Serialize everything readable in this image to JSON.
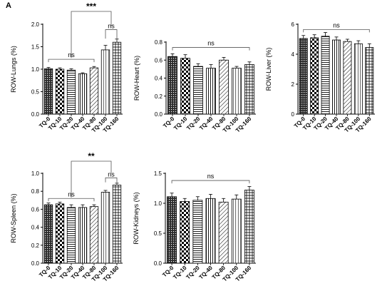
{
  "panel_label": "A",
  "chart_data": [
    {
      "type": "bar",
      "ylabel": "ROW-Lungs (%)",
      "ylim": [
        0,
        2.0
      ],
      "yticks": [
        "0.0",
        "0.5",
        "1.0",
        "1.5",
        "2.0"
      ],
      "categories": [
        "TQ-0",
        "TQ-10",
        "TQ-20",
        "TQ-40",
        "TQ-80",
        "TQ-100",
        "TQ-160"
      ],
      "values": [
        1.01,
        1.0,
        0.98,
        0.9,
        1.03,
        1.43,
        1.6
      ],
      "errors": [
        0.03,
        0.03,
        0.03,
        0.02,
        0.03,
        0.1,
        0.07
      ],
      "annotations": [
        {
          "text": "ns",
          "from": "TQ-0",
          "to": "TQ-80"
        },
        {
          "text": "ns",
          "from": "TQ-100",
          "to": "TQ-160"
        },
        {
          "text": "***",
          "from": "TQ-0 to TQ-80",
          "to": "TQ-100 to TQ-160"
        }
      ]
    },
    {
      "type": "bar",
      "ylabel": "ROW-Heart (%)",
      "ylim": [
        0,
        0.8
      ],
      "yticks": [
        "0.0",
        "0.2",
        "0.4",
        "0.6",
        "0.8"
      ],
      "categories": [
        "TQ-0",
        "TQ-10",
        "TQ-20",
        "TQ-40",
        "TQ-80",
        "TQ-100",
        "TQ-160"
      ],
      "values": [
        0.64,
        0.62,
        0.53,
        0.51,
        0.6,
        0.51,
        0.55
      ],
      "errors": [
        0.03,
        0.04,
        0.03,
        0.04,
        0.03,
        0.02,
        0.03
      ],
      "annotations": [
        {
          "text": "ns",
          "from": "TQ-0",
          "to": "TQ-160"
        }
      ]
    },
    {
      "type": "bar",
      "ylabel": "ROW-Liver (%)",
      "ylim": [
        0,
        6
      ],
      "yticks": [
        "0",
        "2",
        "4",
        "6"
      ],
      "categories": [
        "TQ-0",
        "TQ-10",
        "TQ-20",
        "TQ-40",
        "TQ-80",
        "TQ-100",
        "TQ-160"
      ],
      "values": [
        5.05,
        5.1,
        5.2,
        4.95,
        4.85,
        4.7,
        4.45
      ],
      "errors": [
        0.2,
        0.2,
        0.25,
        0.2,
        0.15,
        0.2,
        0.25
      ],
      "annotations": [
        {
          "text": "ns",
          "from": "TQ-0",
          "to": "TQ-160"
        }
      ]
    },
    {
      "type": "bar",
      "ylabel": "ROW-Spleen (%)",
      "ylim": [
        0,
        1.0
      ],
      "yticks": [
        "0.0",
        "0.2",
        "0.4",
        "0.6",
        "0.8",
        "1.0"
      ],
      "categories": [
        "TQ-0",
        "TQ-10",
        "TQ-20",
        "TQ-40",
        "TQ-80",
        "TQ-100",
        "TQ-160"
      ],
      "values": [
        0.65,
        0.66,
        0.62,
        0.62,
        0.63,
        0.79,
        0.87
      ],
      "errors": [
        0.02,
        0.02,
        0.03,
        0.03,
        0.02,
        0.02,
        0.02
      ],
      "annotations": [
        {
          "text": "ns",
          "from": "TQ-0",
          "to": "TQ-80"
        },
        {
          "text": "ns",
          "from": "TQ-100",
          "to": "TQ-160"
        },
        {
          "text": "**",
          "from": "TQ-0 to TQ-80",
          "to": "TQ-100 to TQ-160"
        }
      ]
    },
    {
      "type": "bar",
      "ylabel": "ROW-Kidneys (%)",
      "ylim": [
        0,
        1.5
      ],
      "yticks": [
        "0.0",
        "0.5",
        "1.0",
        "1.5"
      ],
      "categories": [
        "TQ-0",
        "TQ-10",
        "TQ-20",
        "TQ-40",
        "TQ-80",
        "TQ-100",
        "TQ-160"
      ],
      "values": [
        1.11,
        1.03,
        1.05,
        1.08,
        1.02,
        1.07,
        1.22
      ],
      "errors": [
        0.06,
        0.05,
        0.06,
        0.07,
        0.06,
        0.07,
        0.06
      ],
      "annotations": [
        {
          "text": "ns",
          "from": "TQ-0",
          "to": "TQ-160"
        }
      ]
    }
  ]
}
